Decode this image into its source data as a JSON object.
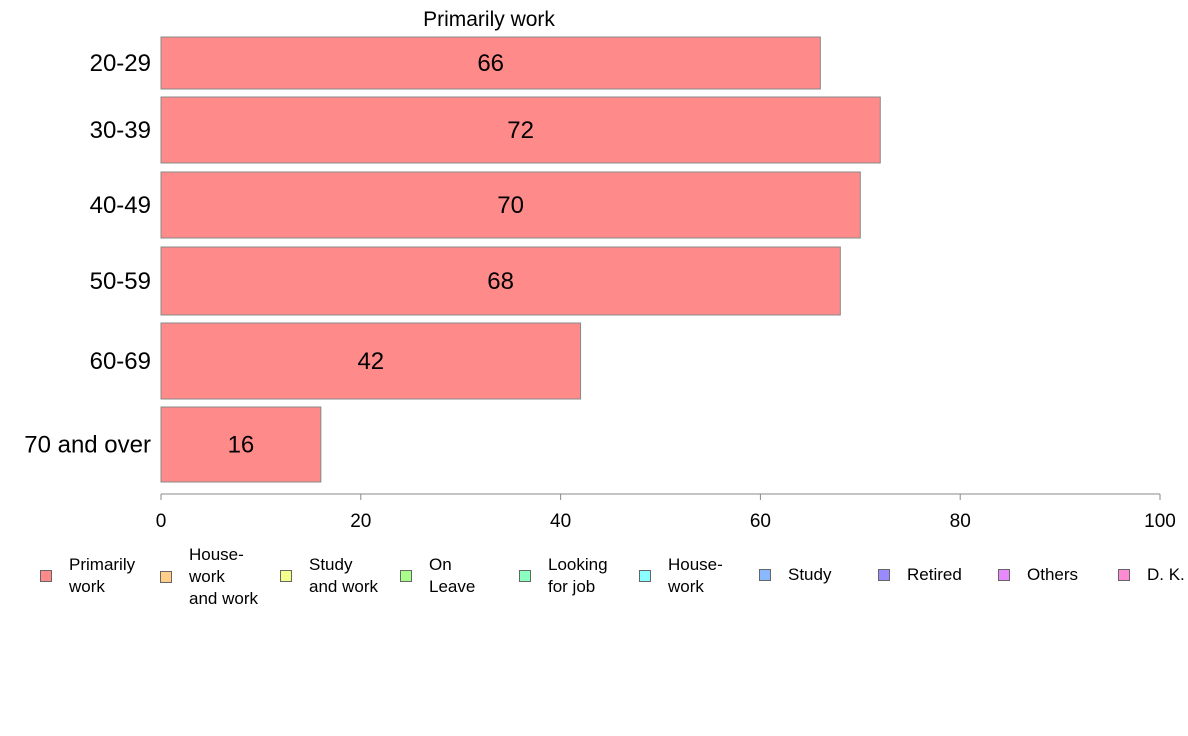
{
  "chart_data": {
    "type": "bar",
    "orientation": "horizontal",
    "title": "Primarily work",
    "categories": [
      "20-29",
      "30-39",
      "40-49",
      "50-59",
      "60-69",
      "70 and over"
    ],
    "series": [
      {
        "name": "Primarily work",
        "values": [
          66,
          72,
          70,
          68,
          42,
          16
        ]
      }
    ],
    "data_labels": [
      "66",
      "72",
      "70",
      "68",
      "42",
      "16"
    ],
    "xlim": [
      0,
      100
    ],
    "x_ticks": [
      0,
      20,
      40,
      60,
      80,
      100
    ],
    "grid": false,
    "legend_placement": "bottom",
    "bar_color": "#ff8a8a",
    "bar_stroke": "#888888",
    "legend": [
      {
        "label": "Primarily\nwork",
        "color": "#ff8a8a"
      },
      {
        "label": "House-\nwork\nand work",
        "color": "#ffcf8a"
      },
      {
        "label": "Study\nand work",
        "color": "#f2ff8a"
      },
      {
        "label": "On\nLeave",
        "color": "#a8ff8a"
      },
      {
        "label": "Looking\nfor job",
        "color": "#8affc0"
      },
      {
        "label": "House-\nwork",
        "color": "#8affff"
      },
      {
        "label": "Study",
        "color": "#8ab8ff"
      },
      {
        "label": "Retired",
        "color": "#9a8aff"
      },
      {
        "label": "Others",
        "color": "#e88aff"
      },
      {
        "label": "D. K.",
        "color": "#ff8ad4"
      }
    ]
  }
}
